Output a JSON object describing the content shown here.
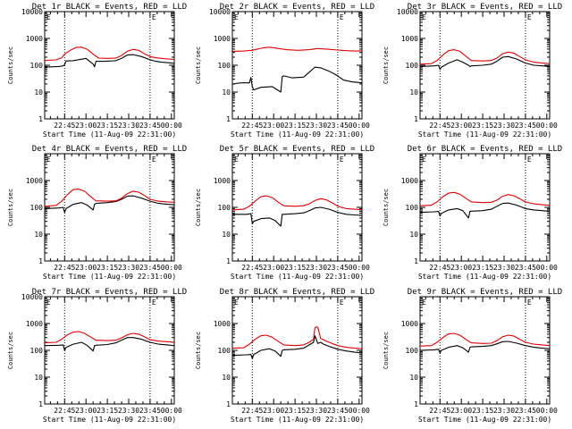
{
  "colors": {
    "events": "#000000",
    "lld": "#e00000",
    "background": "#ffffff"
  },
  "common": {
    "ylabel": "Counts/sec",
    "xlabel": "Start Time (11-Aug-09 22:31:00)",
    "corner_mark": "E",
    "x_ticks": [
      "22:45",
      "23:00",
      "23:15",
      "23:30",
      "23:45",
      "00:00"
    ],
    "y_ticks": [
      "1",
      "10",
      "100",
      "1000",
      "10000"
    ],
    "y_ticks_nolead": [
      "1",
      "10",
      "100",
      "1000"
    ]
  },
  "chart_data": [
    {
      "type": "line",
      "title": "Det 1r BLACK = Events, RED = LLD",
      "xlabel": "Start Time (11-Aug-09 22:31:00)",
      "ylabel": "Counts/sec",
      "x_units": "minutes after 22:31:00",
      "xlim": [
        0,
        91
      ],
      "ylim": [
        1,
        10000
      ],
      "y_scale": "log",
      "dotted_markers_min": [
        14,
        74
      ],
      "max_tick": 10000,
      "series": [
        {
          "name": "Events",
          "color": "#000000",
          "x": [
            0,
            10,
            13,
            14,
            15,
            20,
            29,
            34,
            35,
            36,
            42,
            50,
            54,
            58,
            62,
            68,
            74,
            78,
            82,
            86,
            91
          ],
          "y": [
            85,
            90,
            95,
            105,
            145,
            148,
            180,
            110,
            88,
            140,
            140,
            148,
            180,
            240,
            250,
            210,
            160,
            140,
            130,
            125,
            118
          ]
        },
        {
          "name": "LLD",
          "color": "#e00000",
          "x": [
            0,
            8,
            12,
            14,
            18,
            22,
            26,
            30,
            34,
            38,
            44,
            50,
            54,
            58,
            62,
            66,
            70,
            74,
            78,
            84,
            91
          ],
          "y": [
            150,
            158,
            190,
            260,
            360,
            460,
            470,
            390,
            260,
            185,
            180,
            185,
            230,
            330,
            390,
            360,
            270,
            210,
            190,
            175,
            165
          ]
        }
      ]
    },
    {
      "type": "line",
      "title": "Det 2r BLACK = Events, RED = LLD",
      "xlabel": "Start Time (11-Aug-09 22:31:00)",
      "ylabel": "Counts/sec",
      "x_units": "minutes after 22:31:00",
      "xlim": [
        0,
        91
      ],
      "ylim": [
        1,
        10000
      ],
      "y_scale": "log",
      "dotted_markers_min": [
        14,
        74
      ],
      "max_tick": 10000,
      "series": [
        {
          "name": "Events",
          "color": "#000000",
          "x": [
            0,
            6,
            12,
            13,
            14,
            15,
            20,
            28,
            34,
            35,
            36,
            42,
            50,
            54,
            58,
            62,
            68,
            74,
            78,
            84,
            91
          ],
          "y": [
            20,
            22,
            22,
            35,
            16,
            12,
            15,
            16,
            10,
            38,
            40,
            34,
            36,
            55,
            85,
            80,
            60,
            40,
            28,
            24,
            22
          ]
        },
        {
          "name": "LLD",
          "color": "#e00000",
          "x": [
            0,
            8,
            14,
            22,
            26,
            30,
            38,
            46,
            54,
            60,
            66,
            74,
            80,
            86,
            91
          ],
          "y": [
            330,
            340,
            360,
            450,
            470,
            440,
            380,
            360,
            380,
            420,
            400,
            370,
            350,
            340,
            345
          ]
        }
      ]
    },
    {
      "type": "line",
      "title": "Det 3r BLACK = Events, RED = LLD",
      "xlabel": "Start Time (11-Aug-09 22:31:00)",
      "ylabel": "Counts/sec",
      "x_units": "minutes after 22:31:00",
      "xlim": [
        0,
        91
      ],
      "ylim": [
        1,
        10000
      ],
      "y_scale": "log",
      "dotted_markers_min": [
        14,
        74
      ],
      "max_tick": 10000,
      "series": [
        {
          "name": "Events",
          "color": "#000000",
          "x": [
            0,
            10,
            13,
            14,
            15,
            20,
            26,
            30,
            34,
            35,
            36,
            44,
            50,
            54,
            58,
            62,
            68,
            74,
            80,
            86,
            91
          ],
          "y": [
            90,
            95,
            100,
            70,
            85,
            120,
            160,
            130,
            100,
            90,
            95,
            100,
            110,
            140,
            200,
            210,
            170,
            120,
            100,
            95,
            90
          ]
        },
        {
          "name": "LLD",
          "color": "#e00000",
          "x": [
            0,
            8,
            12,
            16,
            20,
            24,
            28,
            32,
            36,
            44,
            50,
            54,
            58,
            62,
            66,
            70,
            74,
            80,
            86,
            91
          ],
          "y": [
            110,
            115,
            150,
            240,
            350,
            380,
            330,
            220,
            150,
            145,
            150,
            185,
            270,
            310,
            280,
            210,
            160,
            130,
            120,
            115
          ]
        }
      ]
    },
    {
      "type": "line",
      "title": "Det 4r BLACK = Events, RED = LLD",
      "xlabel": "Start Time (11-Aug-09 22:31:00)",
      "ylabel": "Counts/sec",
      "x_units": "minutes after 22:31:00",
      "xlim": [
        0,
        91
      ],
      "ylim": [
        1,
        10000
      ],
      "y_scale": "log",
      "dotted_markers_min": [
        14,
        74
      ],
      "max_tick": 1000,
      "series": [
        {
          "name": "Events",
          "color": "#000000",
          "x": [
            0,
            10,
            13,
            14,
            15,
            20,
            26,
            30,
            34,
            35,
            36,
            44,
            50,
            54,
            58,
            62,
            68,
            74,
            80,
            86,
            91
          ],
          "y": [
            90,
            95,
            100,
            65,
            90,
            130,
            150,
            120,
            80,
            130,
            140,
            150,
            165,
            200,
            260,
            270,
            220,
            170,
            140,
            130,
            125
          ]
        },
        {
          "name": "LLD",
          "color": "#e00000",
          "x": [
            0,
            8,
            12,
            16,
            20,
            24,
            28,
            32,
            36,
            44,
            50,
            54,
            58,
            62,
            66,
            70,
            74,
            80,
            86,
            91
          ],
          "y": [
            110,
            118,
            170,
            300,
            460,
            480,
            400,
            260,
            175,
            170,
            175,
            220,
            320,
            400,
            370,
            280,
            200,
            170,
            160,
            155
          ]
        }
      ]
    },
    {
      "type": "line",
      "title": "Det 5r BLACK = Events, RED = LLD",
      "xlabel": "Start Time (11-Aug-09 22:31:00)",
      "ylabel": "Counts/sec",
      "x_units": "minutes after 22:31:00",
      "xlim": [
        0,
        91
      ],
      "ylim": [
        1,
        10000
      ],
      "y_scale": "log",
      "dotted_markers_min": [
        14,
        74
      ],
      "max_tick": 1000,
      "series": [
        {
          "name": "Events",
          "color": "#000000",
          "x": [
            0,
            10,
            13,
            14,
            15,
            20,
            26,
            30,
            34,
            35,
            36,
            44,
            50,
            54,
            58,
            62,
            68,
            74,
            80,
            86,
            91
          ],
          "y": [
            55,
            55,
            58,
            25,
            30,
            38,
            40,
            32,
            20,
            55,
            55,
            58,
            62,
            75,
            95,
            100,
            85,
            65,
            55,
            52,
            50
          ]
        },
        {
          "name": "LLD",
          "color": "#e00000",
          "x": [
            0,
            8,
            12,
            16,
            20,
            24,
            28,
            32,
            36,
            44,
            50,
            54,
            58,
            62,
            66,
            70,
            74,
            80,
            86,
            91
          ],
          "y": [
            80,
            85,
            110,
            170,
            250,
            270,
            230,
            160,
            115,
            110,
            115,
            135,
            180,
            210,
            190,
            150,
            110,
            90,
            85,
            82
          ]
        }
      ]
    },
    {
      "type": "line",
      "title": "Det 6r BLACK = Events, RED = LLD",
      "xlabel": "Start Time (11-Aug-09 22:31:00)",
      "ylabel": "Counts/sec",
      "x_units": "minutes after 22:31:00",
      "xlim": [
        0,
        91
      ],
      "ylim": [
        1,
        10000
      ],
      "y_scale": "log",
      "dotted_markers_min": [
        14,
        74
      ],
      "max_tick": 1000,
      "series": [
        {
          "name": "Events",
          "color": "#000000",
          "x": [
            0,
            10,
            13,
            14,
            15,
            20,
            26,
            30,
            34,
            35,
            36,
            44,
            50,
            54,
            58,
            62,
            68,
            74,
            80,
            86,
            91
          ],
          "y": [
            65,
            68,
            70,
            48,
            60,
            80,
            90,
            75,
            40,
            70,
            72,
            75,
            85,
            110,
            140,
            145,
            120,
            90,
            80,
            75,
            70
          ]
        },
        {
          "name": "LLD",
          "color": "#e00000",
          "x": [
            0,
            8,
            12,
            16,
            20,
            24,
            28,
            32,
            36,
            44,
            50,
            54,
            58,
            62,
            66,
            70,
            74,
            80,
            86,
            91
          ],
          "y": [
            115,
            120,
            160,
            250,
            340,
            360,
            310,
            220,
            160,
            150,
            155,
            185,
            260,
            300,
            270,
            210,
            160,
            135,
            125,
            118
          ]
        }
      ]
    },
    {
      "type": "line",
      "title": "Det 7r BLACK = Events, RED = LLD",
      "xlabel": "Start Time (11-Aug-09 22:31:00)",
      "ylabel": "Counts/sec",
      "x_units": "minutes after 22:31:00",
      "xlim": [
        0,
        91
      ],
      "ylim": [
        1,
        10000
      ],
      "y_scale": "log",
      "dotted_markers_min": [
        14,
        74
      ],
      "max_tick": 10000,
      "series": [
        {
          "name": "Events",
          "color": "#000000",
          "x": [
            0,
            10,
            13,
            14,
            15,
            20,
            26,
            30,
            34,
            35,
            36,
            44,
            50,
            54,
            58,
            62,
            68,
            74,
            80,
            86,
            91
          ],
          "y": [
            150,
            155,
            160,
            100,
            130,
            170,
            200,
            150,
            95,
            150,
            155,
            165,
            190,
            240,
            300,
            300,
            260,
            200,
            170,
            160,
            150
          ]
        },
        {
          "name": "LLD",
          "color": "#e00000",
          "x": [
            0,
            8,
            12,
            16,
            20,
            24,
            28,
            32,
            36,
            44,
            50,
            54,
            58,
            62,
            66,
            70,
            74,
            80,
            86,
            91
          ],
          "y": [
            190,
            200,
            260,
            380,
            480,
            500,
            430,
            320,
            240,
            230,
            240,
            290,
            380,
            430,
            400,
            320,
            250,
            220,
            210,
            200
          ]
        }
      ]
    },
    {
      "type": "line",
      "title": "Det 8r BLACK = Events, RED = LLD",
      "xlabel": "Start Time (11-Aug-09 22:31:00)",
      "ylabel": "Counts/sec",
      "x_units": "minutes after 22:31:00",
      "xlim": [
        0,
        91
      ],
      "ylim": [
        1,
        10000
      ],
      "y_scale": "log",
      "dotted_markers_min": [
        14,
        74
      ],
      "max_tick": 1000,
      "series": [
        {
          "name": "Events",
          "color": "#000000",
          "x": [
            0,
            10,
            13,
            14,
            15,
            20,
            26,
            30,
            34,
            35,
            36,
            44,
            50,
            54,
            57,
            58,
            60,
            62,
            64,
            68,
            74,
            80,
            86,
            91
          ],
          "y": [
            65,
            68,
            70,
            50,
            70,
            100,
            115,
            95,
            60,
            100,
            105,
            110,
            120,
            160,
            200,
            350,
            180,
            200,
            170,
            140,
            110,
            95,
            85,
            80
          ]
        },
        {
          "name": "LLD",
          "color": "#e00000",
          "x": [
            0,
            8,
            12,
            16,
            20,
            24,
            28,
            32,
            36,
            44,
            50,
            54,
            57,
            58,
            59,
            60,
            62,
            64,
            66,
            70,
            74,
            80,
            86,
            91
          ],
          "y": [
            120,
            125,
            170,
            260,
            350,
            370,
            310,
            220,
            160,
            150,
            160,
            200,
            260,
            700,
            750,
            720,
            280,
            250,
            220,
            180,
            150,
            130,
            120,
            115
          ]
        }
      ]
    },
    {
      "type": "line",
      "title": "Det 9r BLACK = Events, RED = LLD",
      "xlabel": "Start Time (11-Aug-09 22:31:00)",
      "ylabel": "Counts/sec",
      "x_units": "minutes after 22:31:00",
      "xlim": [
        0,
        91
      ],
      "ylim": [
        1,
        10000
      ],
      "y_scale": "log",
      "dotted_markers_min": [
        14,
        74
      ],
      "max_tick": 1000,
      "series": [
        {
          "name": "Events",
          "color": "#000000",
          "x": [
            0,
            10,
            13,
            14,
            15,
            20,
            26,
            30,
            34,
            35,
            36,
            44,
            50,
            54,
            58,
            62,
            68,
            74,
            80,
            86,
            91
          ],
          "y": [
            100,
            105,
            110,
            80,
            100,
            130,
            150,
            125,
            85,
            130,
            135,
            140,
            150,
            175,
            210,
            215,
            185,
            150,
            130,
            120,
            115
          ]
        },
        {
          "name": "LLD",
          "color": "#e00000",
          "x": [
            0,
            8,
            12,
            16,
            20,
            24,
            28,
            32,
            36,
            44,
            50,
            54,
            58,
            62,
            66,
            70,
            74,
            80,
            86,
            91
          ],
          "y": [
            145,
            150,
            200,
            300,
            410,
            430,
            370,
            260,
            190,
            180,
            185,
            230,
            320,
            370,
            340,
            260,
            200,
            170,
            160,
            150
          ]
        }
      ]
    }
  ]
}
